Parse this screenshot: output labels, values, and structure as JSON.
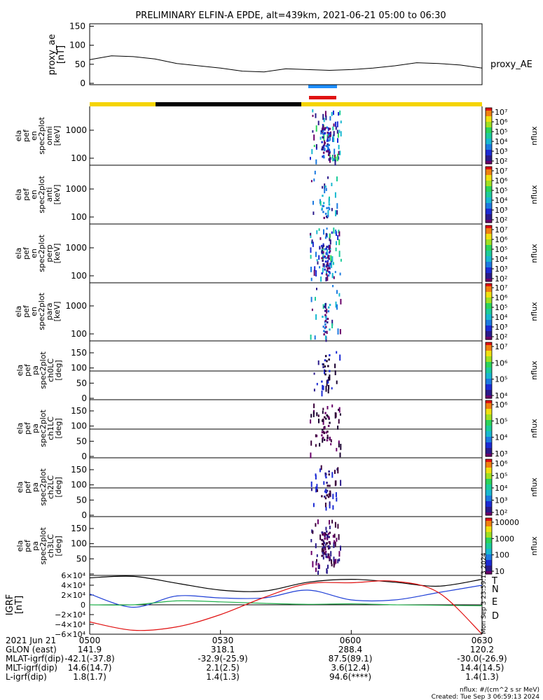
{
  "title": "PRELIMINARY ELFIN-A EPDE, alt=439km, 2021-06-21 05:00 to 06:30",
  "panels": [
    {
      "id": "ae",
      "ylabel": [
        "proxy_ae",
        "[nT]"
      ],
      "rightlabel": "proxy_AE",
      "yticks": [
        "150",
        "100",
        "50",
        "0"
      ]
    },
    {
      "id": "omni",
      "ylabel": [
        "ela",
        "pef",
        "en",
        "spec2plot",
        "omni",
        "[keV]"
      ],
      "yticks": [
        "1000",
        "100"
      ],
      "cbar": [
        "10⁷",
        "10⁶",
        "10⁵",
        "10⁴",
        "10³",
        "10²"
      ]
    },
    {
      "id": "anti",
      "ylabel": [
        "ela",
        "pef",
        "en",
        "spec2plot",
        "anti",
        "[keV]"
      ],
      "yticks": [
        "1000",
        "100"
      ],
      "cbar": [
        "10⁷",
        "10⁶",
        "10⁵",
        "10⁴",
        "10³",
        "10²"
      ]
    },
    {
      "id": "perp",
      "ylabel": [
        "ela",
        "pef",
        "en",
        "spec2plot",
        "perp",
        "[keV]"
      ],
      "yticks": [
        "1000",
        "100"
      ],
      "cbar": [
        "10⁷",
        "10⁶",
        "10⁵",
        "10⁴",
        "10³",
        "10²"
      ]
    },
    {
      "id": "para",
      "ylabel": [
        "ela",
        "pef",
        "en",
        "spec2plot",
        "para",
        "[keV]"
      ],
      "yticks": [
        "1000",
        "100"
      ],
      "cbar": [
        "10⁷",
        "10⁶",
        "10⁵",
        "10⁴",
        "10³",
        "10²"
      ]
    },
    {
      "id": "ch0",
      "ylabel": [
        "ela",
        "pef",
        "pa",
        "spec2plot",
        "ch0LC",
        "[deg]"
      ],
      "yticks": [
        "150",
        "100",
        "50",
        "0"
      ],
      "cbar": [
        "10⁷",
        "10⁶",
        "10⁵",
        "10⁴"
      ]
    },
    {
      "id": "ch1",
      "ylabel": [
        "ela",
        "pef",
        "pa",
        "spec2plot",
        "ch1LC",
        "[deg]"
      ],
      "yticks": [
        "150",
        "100",
        "50",
        "0"
      ],
      "cbar": [
        "10⁶",
        "10⁵",
        "10⁴",
        "10³"
      ]
    },
    {
      "id": "ch2",
      "ylabel": [
        "ela",
        "pef",
        "pa",
        "spec2plot",
        "ch2LC",
        "[deg]"
      ],
      "yticks": [
        "150",
        "100",
        "50",
        "0"
      ],
      "cbar": [
        "10⁶",
        "10⁵",
        "10⁴",
        "10³",
        "10²"
      ]
    },
    {
      "id": "ch3",
      "ylabel": [
        "ela",
        "pef",
        "pa",
        "spec2plot",
        "ch3LC",
        "[deg]"
      ],
      "yticks": [
        "150",
        "100",
        "50"
      ],
      "cbar": [
        "10000",
        "1000",
        "100",
        "10"
      ]
    },
    {
      "id": "igrf",
      "ylabel": [
        "IGRF",
        "[nT]"
      ],
      "yticks": [
        "6×10⁴",
        "4×10⁴",
        "2×10⁴",
        "0",
        "−2×10⁴",
        "−4×10⁴",
        "−6×10⁴"
      ]
    }
  ],
  "cbar_label": "nflux",
  "igrf_legend": [
    "T",
    "N",
    "E",
    "D"
  ],
  "igrf_colors": {
    "T": "#000000",
    "N": "#1f3fd6",
    "E": "#22b14c",
    "D": "#e01010"
  },
  "side_stamp": "Mon Sep  3 23:59:13 2024",
  "footer": {
    "labels": [
      "2021 Jun 21",
      "GLON (east)",
      "MLAT-igrf(dip)",
      "MLT-igrf(dip)",
      "L-igrf(dip)"
    ],
    "times": [
      "0500",
      "0530",
      "0600",
      "0630"
    ],
    "columns": [
      [
        "",
        "141.9",
        "-42.1(-37.8)",
        "14.6(14.7)",
        "1.8(1.7)"
      ],
      [
        "",
        "318.1",
        "-32.9(-25.9)",
        "2.1(2.5)",
        "1.4(1.3)"
      ],
      [
        "",
        "288.4",
        "87.5(89.1)",
        "3.6(12.4)",
        "94.6(****)"
      ],
      [
        "",
        "120.2",
        "-30.0(-26.9)",
        "14.4(14.5)",
        "1.4(1.3)"
      ]
    ],
    "units_note": "nflux: #/(cm^2 s sr MeV)",
    "created": "Created: Tue Sep  3 06:59:13 2024"
  },
  "chart_data": {
    "type": "line",
    "title": "PRELIMINARY ELFIN-A EPDE, alt=439km, 2021-06-21 05:00 to 06:30",
    "x_range": [
      "05:00",
      "06:30"
    ],
    "proxy_ae": {
      "ylim": [
        0,
        160
      ],
      "x": [
        "05:00",
        "05:05",
        "05:10",
        "05:15",
        "05:20",
        "05:25",
        "05:30",
        "05:35",
        "05:40",
        "05:45",
        "05:50",
        "05:55",
        "06:00",
        "06:05",
        "06:10",
        "06:15",
        "06:20",
        "06:25",
        "06:30"
      ],
      "values": [
        62,
        72,
        70,
        64,
        52,
        46,
        40,
        32,
        30,
        38,
        36,
        34,
        36,
        40,
        46,
        54,
        52,
        48,
        40
      ]
    },
    "spectrogram": {
      "energy_range_keV": [
        60,
        3000
      ],
      "pitch_angle_range_deg": [
        0,
        180
      ],
      "burst_time": [
        "05:50",
        "05:55"
      ],
      "peak_time": "05:53"
    },
    "igrf": {
      "ylim": [
        -60000,
        60000
      ],
      "series": [
        {
          "name": "T",
          "x": [
            "05:00",
            "05:10",
            "05:20",
            "05:30",
            "05:40",
            "05:50",
            "06:00",
            "06:10",
            "06:20",
            "06:30"
          ],
          "values": [
            55000,
            58000,
            44000,
            30000,
            28000,
            46000,
            52000,
            46000,
            38000,
            52000
          ]
        },
        {
          "name": "N",
          "x": [
            "05:00",
            "05:10",
            "05:20",
            "05:30",
            "05:40",
            "05:50",
            "06:00",
            "06:10",
            "06:20",
            "06:30"
          ],
          "values": [
            22000,
            -5000,
            18000,
            14000,
            14000,
            30000,
            10000,
            10000,
            25000,
            40000
          ]
        },
        {
          "name": "E",
          "x": [
            "05:00",
            "05:10",
            "05:20",
            "05:30",
            "05:40",
            "05:50",
            "06:00",
            "06:10",
            "06:20",
            "06:30"
          ],
          "values": [
            0,
            0,
            8000,
            6000,
            3000,
            1000,
            2000,
            0,
            -1000,
            -2000
          ]
        },
        {
          "name": "D",
          "x": [
            "05:00",
            "05:10",
            "05:20",
            "05:30",
            "05:40",
            "05:50",
            "06:00",
            "06:10",
            "06:20",
            "06:30"
          ],
          "values": [
            -35000,
            -52000,
            -45000,
            -20000,
            15000,
            43000,
            45000,
            48000,
            25000,
            -60000
          ]
        }
      ]
    }
  }
}
